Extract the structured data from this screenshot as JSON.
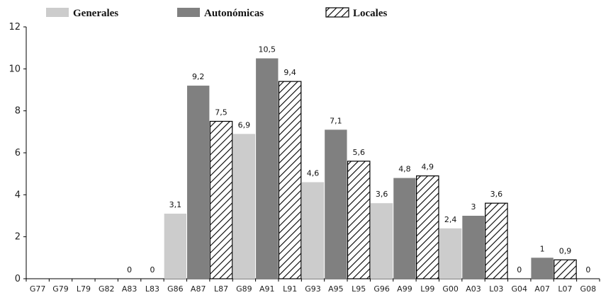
{
  "chart_data": {
    "type": "bar",
    "title": "",
    "xlabel": "",
    "ylabel": "",
    "ylim": [
      0,
      12
    ],
    "yticks": [
      0,
      2,
      4,
      6,
      8,
      10,
      12
    ],
    "grid": false,
    "legend_position": "top",
    "series": [
      {
        "name": "Generales",
        "pattern": "solid",
        "color": "#cccccc"
      },
      {
        "name": "Autonómicas",
        "pattern": "solid",
        "color": "#808080"
      },
      {
        "name": "Locales",
        "pattern": "hatched",
        "color": "#ffffff"
      }
    ],
    "categories": [
      "G77",
      "G79",
      "L79",
      "G82",
      "A83",
      "L83",
      "G86",
      "A87",
      "L87",
      "G89",
      "A91",
      "L91",
      "G93",
      "A95",
      "L95",
      "G96",
      "A99",
      "L99",
      "G00",
      "A03",
      "L03",
      "G04",
      "A07",
      "L07",
      "G08"
    ],
    "category_series": [
      "Generales",
      "Generales",
      "Locales",
      "Generales",
      "Autonómicas",
      "Locales",
      "Generales",
      "Autonómicas",
      "Locales",
      "Generales",
      "Autonómicas",
      "Locales",
      "Generales",
      "Autonómicas",
      "Locales",
      "Generales",
      "Autonómicas",
      "Locales",
      "Generales",
      "Autonómicas",
      "Locales",
      "Generales",
      "Autonómicas",
      "Locales",
      "Generales"
    ],
    "values": [
      0,
      0,
      0,
      0,
      0,
      0,
      3.1,
      9.2,
      7.5,
      6.9,
      10.5,
      9.4,
      4.6,
      7.1,
      5.6,
      3.6,
      4.8,
      4.9,
      2.4,
      3,
      3.6,
      0,
      1,
      0.9,
      0
    ],
    "data_labels": [
      "",
      "",
      "",
      "",
      "0",
      "0",
      "3,1",
      "9,2",
      "7,5",
      "6,9",
      "10,5",
      "9,4",
      "4,6",
      "7,1",
      "5,6",
      "3,6",
      "4,8",
      "4,9",
      "2,4",
      "3",
      "3,6",
      "0",
      "1",
      "0,9",
      "0"
    ]
  }
}
